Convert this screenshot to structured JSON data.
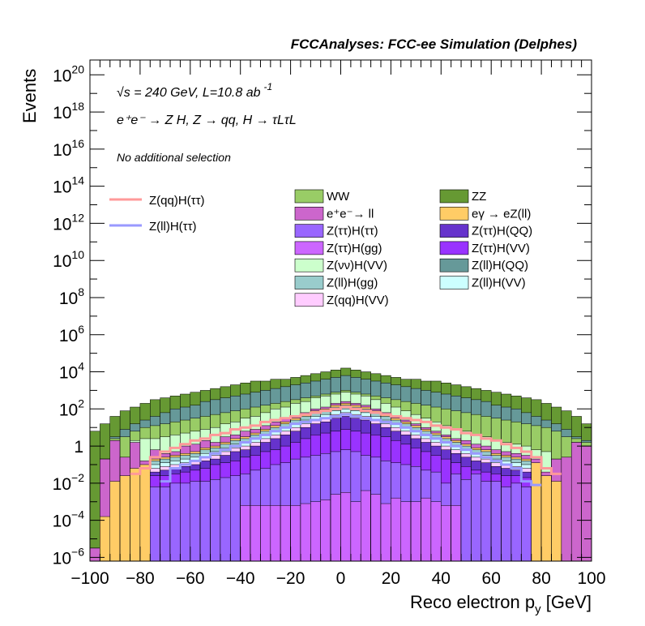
{
  "header": {
    "title": "FCCAnalyses: FCC-ee Simulation (Delphes)",
    "energy_text": "√s = 240 GeV, L=10.8 ab",
    "energy_exp": "-1",
    "process_text": "e⁺e⁻ → Z H, Z → qq, H → τLτL",
    "selection_text": "No additional selection"
  },
  "colors": {
    "WW": "#99cc66",
    "ZZ": "#669933",
    "ee_ll": "#cc66cc",
    "egamma": "#ffcc66",
    "Ztautau_Htautau": "#9966ff",
    "Ztautau_HQQ": "#6633cc",
    "Ztautau_Hgg": "#cc66ff",
    "Ztautau_HVV": "#9933ff",
    "Znunu_HVV": "#ccffcc",
    "Zll_HQQ": "#669999",
    "Zll_Hgg": "#99cccc",
    "Zll_HVV": "#ccffff",
    "Zqq_HVV": "#ffccff",
    "sig_qq": "#ff9999",
    "sig_ll": "#9999ff"
  },
  "chart_data": {
    "type": "area",
    "title": "FCCAnalyses: FCC-ee Simulation (Delphes)",
    "xlabel": "Reco electron p",
    "xlabel_sub": "y",
    "xlabel_unit": "[GeV]",
    "ylabel": "Events",
    "xlim": [
      -100,
      100
    ],
    "ylim_log10": [
      -6.2,
      20.8
    ],
    "log_y": true,
    "grid": false,
    "legend_placement": "top-right",
    "x_ticks": [
      -100,
      -80,
      -60,
      -40,
      -20,
      0,
      20,
      40,
      60,
      80,
      100
    ],
    "y_ticks": [
      {
        "exp": -6,
        "label": "10",
        "sup": "−6"
      },
      {
        "exp": -4,
        "label": "10",
        "sup": "−4"
      },
      {
        "exp": -2,
        "label": "10",
        "sup": "−2"
      },
      {
        "exp": 0,
        "label": "1",
        "sup": ""
      },
      {
        "exp": 2,
        "label": "10",
        "sup": "2"
      },
      {
        "exp": 4,
        "label": "10",
        "sup": "4"
      },
      {
        "exp": 6,
        "label": "10",
        "sup": "6"
      },
      {
        "exp": 8,
        "label": "10",
        "sup": "8"
      },
      {
        "exp": 10,
        "label": "10",
        "sup": "10"
      },
      {
        "exp": 12,
        "label": "10",
        "sup": "12"
      },
      {
        "exp": 14,
        "label": "10",
        "sup": "14"
      },
      {
        "exp": 16,
        "label": "10",
        "sup": "16"
      },
      {
        "exp": 18,
        "label": "10",
        "sup": "18"
      },
      {
        "exp": 20,
        "label": "10",
        "sup": "20"
      }
    ],
    "bin_edges_start": -100,
    "bin_width": 4,
    "stack_order_bottom_to_top": [
      "Ztautau_Hgg",
      "Ztautau_Htautau",
      "Ztautau_HVV",
      "Ztautau_HQQ",
      "Zqq_HVV",
      "Zll_HVV",
      "Zll_Hgg",
      "egamma",
      "ee_ll",
      "Znunu_HVV",
      "WW",
      "Zll_HQQ",
      "ZZ"
    ],
    "stack_top_log10": {
      "Ztautau_Hgg": [
        -7,
        -7,
        -7,
        -7,
        -7,
        -7,
        -7,
        -7,
        -7,
        -7,
        -7,
        -7,
        -7,
        -7,
        -7,
        -3.2,
        -3.2,
        -3.2,
        -3.2,
        -3.2,
        -3.2,
        -3.1,
        -3.0,
        -2.9,
        -2.6,
        -2.5,
        -3.0,
        -2.4,
        -2.6,
        -3.1,
        -2.8,
        -3.0,
        -3.0,
        -2.8,
        -3.0,
        -3.2,
        -3.2,
        -7,
        -7,
        -7,
        -7,
        -7,
        -7,
        -7,
        -7,
        -7,
        -7,
        -7,
        -7,
        -7
      ],
      "Ztautau_Htautau": [
        -7,
        -7,
        -7,
        -7,
        -7,
        -7,
        -2.2,
        -2.2,
        -2.0,
        -2.0,
        -1.9,
        -1.9,
        -1.8,
        -1.7,
        -1.6,
        -1.5,
        -1.3,
        -1.2,
        -1.0,
        -0.9,
        -0.7,
        -0.6,
        -0.5,
        -0.4,
        -0.3,
        -0.2,
        -0.3,
        -0.5,
        -0.6,
        -0.8,
        -0.9,
        -1.0,
        -1.1,
        -1.3,
        -1.4,
        -2.0,
        -1.5,
        -1.8,
        -1.5,
        -1.9,
        -1.9,
        -2.2,
        -2.0,
        -2.2,
        -7,
        -7,
        -7,
        -7,
        -7,
        -7
      ],
      "Ztautau_HVV": [
        -7,
        -7,
        -7,
        -7,
        -7,
        -7,
        -1.6,
        -1.6,
        -1.5,
        -1.4,
        -1.3,
        -1.2,
        -1.0,
        -0.9,
        -0.8,
        -0.6,
        -0.5,
        -0.3,
        -0.2,
        0.0,
        0.2,
        0.4,
        0.6,
        0.7,
        0.8,
        0.9,
        0.8,
        0.7,
        0.6,
        0.5,
        0.3,
        0.1,
        -0.1,
        -0.3,
        -0.5,
        -0.7,
        -0.9,
        -1.1,
        -1.3,
        -1.4,
        -1.5,
        -1.6,
        -1.6,
        -1.7,
        -7,
        -7,
        -7,
        -7,
        -7,
        -7
      ],
      "Ztautau_HQQ": [
        -7,
        -7,
        -7,
        -7,
        -7,
        -7,
        -1.4,
        -1.3,
        -1.2,
        -1.1,
        -1.0,
        -0.8,
        -0.7,
        -0.5,
        -0.3,
        -0.2,
        0.0,
        0.2,
        0.4,
        0.6,
        0.8,
        1.0,
        1.2,
        1.3,
        1.5,
        1.6,
        1.5,
        1.4,
        1.2,
        1.0,
        0.8,
        0.6,
        0.4,
        0.2,
        0.0,
        -0.2,
        -0.4,
        -0.6,
        -0.8,
        -0.9,
        -1.1,
        -1.2,
        -1.3,
        -1.4,
        -7,
        -7,
        -7,
        -7,
        -7,
        -7
      ],
      "Zqq_HVV": [
        -7,
        -7,
        -7,
        -7,
        -7,
        -7,
        -1.2,
        -1.1,
        -1.0,
        -0.9,
        -0.8,
        -0.6,
        -0.5,
        -0.3,
        -0.1,
        0.0,
        0.2,
        0.4,
        0.6,
        0.8,
        1.0,
        1.2,
        1.4,
        1.5,
        1.7,
        1.8,
        1.7,
        1.6,
        1.4,
        1.2,
        1.0,
        0.8,
        0.6,
        0.4,
        0.2,
        0.0,
        -0.2,
        -0.4,
        -0.6,
        -0.7,
        -0.9,
        -1.0,
        -1.1,
        -1.2,
        -7,
        -7,
        -7,
        -7,
        -7,
        -7
      ],
      "Zll_HVV": [
        -7,
        -7,
        -7,
        -7,
        -7,
        -7,
        -1.0,
        -0.9,
        -0.8,
        -0.7,
        -0.6,
        -0.4,
        -0.3,
        -0.1,
        0.1,
        0.2,
        0.4,
        0.6,
        0.8,
        1.0,
        1.2,
        1.4,
        1.6,
        1.7,
        1.9,
        2.0,
        1.9,
        1.8,
        1.6,
        1.4,
        1.2,
        1.0,
        0.8,
        0.6,
        0.4,
        0.2,
        0.0,
        -0.2,
        -0.4,
        -0.5,
        -0.7,
        -0.8,
        -0.9,
        -1.0,
        -7,
        -7,
        -7,
        -7,
        -7,
        -7
      ],
      "Zll_Hgg": [
        -7,
        -7,
        -7,
        -7,
        -7,
        -7,
        -0.8,
        -0.7,
        -0.6,
        -0.5,
        -0.4,
        -0.2,
        -0.1,
        0.1,
        0.3,
        0.4,
        0.6,
        0.8,
        1.0,
        1.2,
        1.4,
        1.6,
        1.8,
        1.9,
        2.1,
        2.2,
        2.1,
        2.0,
        1.8,
        1.6,
        1.4,
        1.2,
        1.0,
        0.8,
        0.6,
        0.4,
        0.2,
        0.0,
        -0.2,
        -0.3,
        -0.5,
        -0.6,
        -0.7,
        -0.8,
        -7,
        -7,
        -7,
        -7,
        -7,
        -7
      ],
      "egamma": [
        -7,
        -3.8,
        -1.9,
        -1.6,
        -1.2,
        -1.0,
        -0.7,
        -0.6,
        -0.5,
        -0.4,
        -0.3,
        -0.1,
        0.0,
        0.2,
        0.4,
        0.5,
        0.7,
        0.9,
        1.1,
        1.3,
        1.5,
        1.7,
        1.9,
        2.0,
        2.2,
        2.3,
        2.2,
        2.1,
        1.9,
        1.7,
        1.5,
        1.3,
        1.1,
        0.9,
        0.7,
        0.5,
        0.3,
        0.1,
        -0.1,
        -0.2,
        -0.4,
        -0.5,
        -0.6,
        -0.7,
        -0.9,
        -1.6,
        -1.9,
        -7,
        -7,
        -7
      ],
      "ee_ll": [
        -5.5,
        -0.7,
        0.3,
        -0.6,
        0.2,
        -0.8,
        -0.2,
        -0.4,
        -0.3,
        0.0,
        0.1,
        0.3,
        0.2,
        0.5,
        0.6,
        0.8,
        0.9,
        1.1,
        1.3,
        1.5,
        1.6,
        1.8,
        2.0,
        2.1,
        2.3,
        2.4,
        2.3,
        2.2,
        2.0,
        1.8,
        1.6,
        1.4,
        1.2,
        1.0,
        0.8,
        0.6,
        0.4,
        0.3,
        0.1,
        0.0,
        -0.2,
        -0.3,
        -0.4,
        -0.5,
        -0.7,
        -1.4,
        -0.7,
        -0.6,
        0.2,
        0.0
      ],
      "Znunu_HVV": [
        -5.5,
        -0.7,
        0.3,
        -0.6,
        0.3,
        0.4,
        0.4,
        0.5,
        0.6,
        0.7,
        0.8,
        0.9,
        1.0,
        1.2,
        1.3,
        1.5,
        1.6,
        1.8,
        2.0,
        2.1,
        2.3,
        2.4,
        2.6,
        2.7,
        2.8,
        2.9,
        2.8,
        2.7,
        2.5,
        2.3,
        2.1,
        1.9,
        1.7,
        1.5,
        1.3,
        1.1,
        0.9,
        0.8,
        0.6,
        0.5,
        0.3,
        0.2,
        0.1,
        0.0,
        -0.2,
        -0.3,
        -0.7,
        -0.6,
        0.2,
        0.0
      ],
      "WW": [
        -5.5,
        -0.7,
        0.4,
        0.5,
        0.8,
        1.0,
        1.1,
        1.2,
        1.3,
        1.4,
        1.5,
        1.6,
        1.7,
        1.8,
        1.9,
        2.0,
        2.1,
        2.2,
        2.3,
        2.4,
        2.5,
        2.6,
        2.7,
        2.8,
        2.9,
        3.0,
        2.9,
        2.8,
        2.7,
        2.6,
        2.5,
        2.4,
        2.3,
        2.2,
        2.1,
        2.0,
        1.9,
        1.8,
        1.7,
        1.6,
        1.5,
        1.4,
        1.3,
        1.2,
        1.1,
        1.0,
        0.8,
        0.5,
        0.4,
        0.2
      ],
      "Zll_HQQ": [
        -5.5,
        -0.7,
        0.5,
        0.9,
        1.2,
        1.4,
        1.6,
        1.8,
        2.0,
        2.1,
        2.2,
        2.4,
        2.5,
        2.6,
        2.7,
        2.8,
        2.9,
        3.0,
        3.1,
        3.2,
        3.3,
        3.4,
        3.5,
        3.6,
        3.7,
        3.8,
        3.7,
        3.6,
        3.5,
        3.4,
        3.3,
        3.2,
        3.1,
        3.0,
        2.9,
        2.8,
        2.7,
        2.6,
        2.5,
        2.4,
        2.2,
        2.1,
        2.0,
        1.8,
        1.6,
        1.4,
        1.2,
        0.9,
        0.5,
        0.3
      ],
      "ZZ": [
        0.8,
        1.2,
        1.6,
        1.9,
        2.1,
        2.3,
        2.5,
        2.6,
        2.7,
        2.8,
        2.9,
        3.0,
        3.1,
        3.2,
        3.3,
        3.4,
        3.5,
        3.5,
        3.6,
        3.6,
        3.7,
        3.8,
        3.9,
        4.0,
        4.1,
        4.2,
        4.1,
        4.0,
        3.9,
        3.8,
        3.7,
        3.6,
        3.6,
        3.5,
        3.5,
        3.4,
        3.3,
        3.2,
        3.1,
        3.0,
        2.9,
        2.8,
        2.7,
        2.6,
        2.5,
        2.3,
        2.1,
        1.9,
        1.6,
        1.2
      ]
    },
    "signal_lines_log10": {
      "sig_qq": [
        -7,
        -7,
        -7,
        -7,
        -1.5,
        -1.2,
        -0.6,
        -0.3,
        -0.1,
        0.1,
        0.3,
        0.4,
        0.6,
        0.7,
        0.9,
        1.0,
        1.1,
        1.3,
        1.4,
        1.5,
        1.6,
        1.7,
        1.8,
        1.9,
        2.0,
        2.1,
        2.0,
        1.9,
        1.8,
        1.7,
        1.6,
        1.5,
        1.4,
        1.3,
        1.1,
        1.0,
        0.9,
        0.7,
        0.6,
        0.4,
        0.3,
        0.1,
        -0.1,
        -0.3,
        -0.6,
        -1.2,
        -1.5,
        -7,
        -7,
        -7
      ],
      "sig_ll": [
        -7,
        -7,
        -7,
        -7,
        -7,
        -7,
        -7,
        -1.9,
        -1.2,
        -1.0,
        -0.8,
        -0.6,
        -0.4,
        -0.2,
        0.0,
        0.2,
        0.4,
        0.6,
        0.8,
        1.0,
        1.2,
        1.3,
        1.4,
        1.5,
        1.6,
        1.7,
        1.6,
        1.5,
        1.4,
        1.3,
        1.2,
        1.0,
        0.8,
        0.6,
        0.4,
        0.2,
        0.0,
        -0.2,
        -0.4,
        -0.6,
        -0.8,
        -1.0,
        -1.2,
        -1.9,
        -2.1,
        -7,
        -7,
        -7,
        -7,
        -7
      ]
    },
    "legend_signals": [
      {
        "key": "sig_qq",
        "label": "Z(qq)H(ττ)"
      },
      {
        "key": "sig_ll",
        "label": "Z(ll)H(ττ)"
      }
    ],
    "legend_backgrounds": [
      {
        "key": "WW",
        "label": "WW"
      },
      {
        "key": "ZZ",
        "label": "ZZ"
      },
      {
        "key": "ee_ll",
        "label": "e⁺e⁻→ ll"
      },
      {
        "key": "egamma",
        "label": "eγ → eZ(ll)"
      },
      {
        "key": "Ztautau_Htautau",
        "label": "Z(ττ)H(ττ)"
      },
      {
        "key": "Ztautau_HQQ",
        "label": "Z(ττ)H(QQ)"
      },
      {
        "key": "Ztautau_Hgg",
        "label": "Z(ττ)H(gg)"
      },
      {
        "key": "Ztautau_HVV",
        "label": "Z(ττ)H(VV)"
      },
      {
        "key": "Znunu_HVV",
        "label": "Z(νν)H(VV)"
      },
      {
        "key": "Zll_HQQ",
        "label": "Z(ll)H(QQ)"
      },
      {
        "key": "Zll_Hgg",
        "label": "Z(ll)H(gg)"
      },
      {
        "key": "Zll_HVV",
        "label": "Z(ll)H(VV)"
      },
      {
        "key": "Zqq_HVV",
        "label": "Z(qq)H(VV)"
      }
    ]
  }
}
